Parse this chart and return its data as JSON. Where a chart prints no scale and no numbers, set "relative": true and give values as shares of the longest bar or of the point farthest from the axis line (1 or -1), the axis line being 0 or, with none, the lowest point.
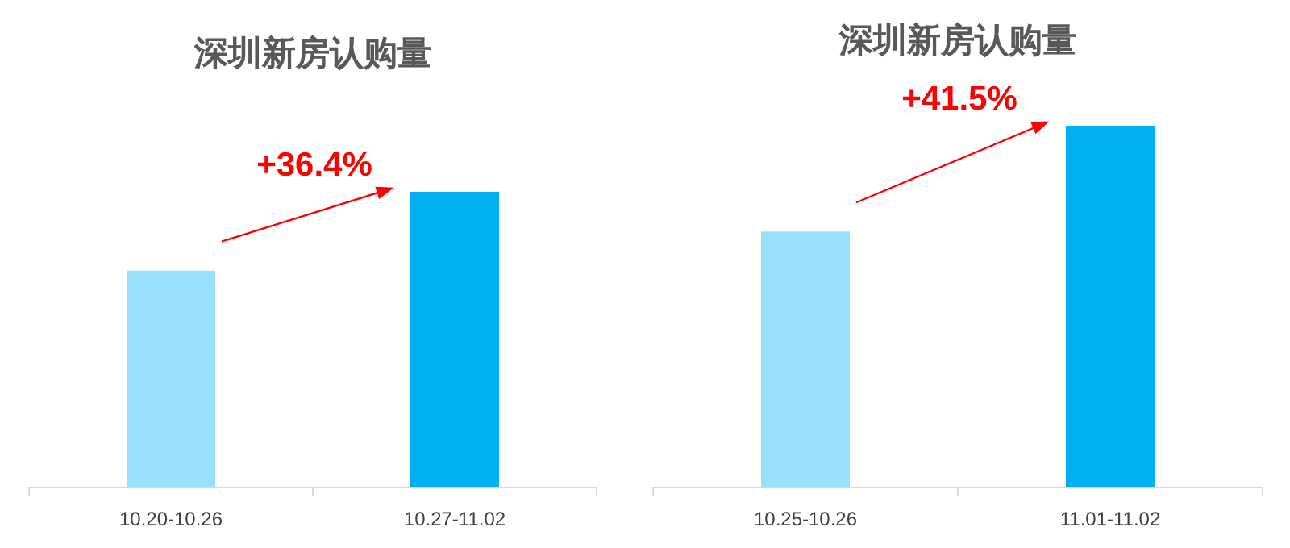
{
  "chart_data": [
    {
      "type": "bar",
      "title": "深圳新房认购量",
      "categories": [
        "10.20-10.26",
        "10.27-11.02"
      ],
      "values": [
        0.733,
        1
      ],
      "colors": [
        "#97e1fb",
        "#00b0f0"
      ],
      "relative": true,
      "annotations": [
        "+36.4%"
      ]
    },
    {
      "type": "bar",
      "title": "深圳新房认购量",
      "categories": [
        "10.25-10.26",
        "11.01-11.02"
      ],
      "values": [
        0.707,
        1
      ],
      "colors": [
        "#97e1fb",
        "#00b0f0"
      ],
      "relative": true,
      "annotations": [
        "+41.5%"
      ]
    }
  ]
}
